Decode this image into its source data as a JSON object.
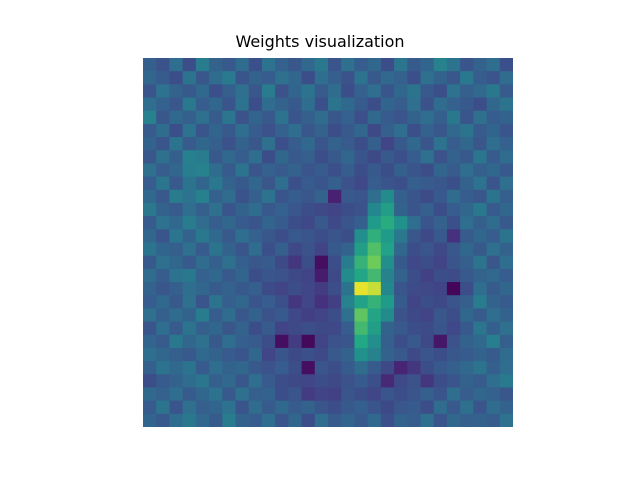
{
  "chart_data": {
    "type": "heatmap",
    "title": "Weights visualization",
    "xlabel": "",
    "ylabel": "",
    "axes_visible": false,
    "grid": false,
    "colormap": "viridis",
    "value_range": [
      0,
      1
    ],
    "rows": 28,
    "cols": 28,
    "values": [
      [
        0.38,
        0.32,
        0.45,
        0.3,
        0.52,
        0.4,
        0.35,
        0.44,
        0.31,
        0.47,
        0.39,
        0.34,
        0.43,
        0.5,
        0.33,
        0.46,
        0.37,
        0.42,
        0.3,
        0.49,
        0.36,
        0.41,
        0.55,
        0.48,
        0.33,
        0.4,
        0.45,
        0.31
      ],
      [
        0.42,
        0.36,
        0.3,
        0.48,
        0.34,
        0.44,
        0.51,
        0.33,
        0.4,
        0.37,
        0.46,
        0.42,
        0.3,
        0.45,
        0.38,
        0.32,
        0.47,
        0.35,
        0.43,
        0.39,
        0.31,
        0.46,
        0.4,
        0.34,
        0.5,
        0.37,
        0.33,
        0.44
      ],
      [
        0.33,
        0.47,
        0.4,
        0.35,
        0.43,
        0.31,
        0.38,
        0.46,
        0.34,
        0.52,
        0.32,
        0.41,
        0.48,
        0.36,
        0.44,
        0.3,
        0.39,
        0.45,
        0.33,
        0.42,
        0.48,
        0.35,
        0.31,
        0.47,
        0.38,
        0.43,
        0.5,
        0.36
      ],
      [
        0.45,
        0.39,
        0.34,
        0.5,
        0.37,
        0.42,
        0.33,
        0.47,
        0.3,
        0.44,
        0.4,
        0.35,
        0.45,
        0.31,
        0.48,
        0.43,
        0.36,
        0.3,
        0.41,
        0.37,
        0.46,
        0.32,
        0.44,
        0.39,
        0.35,
        0.3,
        0.42,
        0.48
      ],
      [
        0.55,
        0.34,
        0.43,
        0.38,
        0.46,
        0.36,
        0.49,
        0.32,
        0.41,
        0.35,
        0.47,
        0.33,
        0.38,
        0.44,
        0.34,
        0.39,
        0.31,
        0.43,
        0.36,
        0.33,
        0.4,
        0.45,
        0.38,
        0.5,
        0.33,
        0.46,
        0.37,
        0.4
      ],
      [
        0.36,
        0.44,
        0.31,
        0.47,
        0.33,
        0.41,
        0.35,
        0.45,
        0.37,
        0.32,
        0.39,
        0.45,
        0.34,
        0.4,
        0.3,
        0.35,
        0.42,
        0.28,
        0.38,
        0.45,
        0.31,
        0.39,
        0.34,
        0.43,
        0.48,
        0.36,
        0.41,
        0.33
      ],
      [
        0.4,
        0.33,
        0.48,
        0.36,
        0.42,
        0.38,
        0.32,
        0.4,
        0.34,
        0.46,
        0.31,
        0.37,
        0.43,
        0.33,
        0.4,
        0.36,
        0.3,
        0.38,
        0.25,
        0.35,
        0.43,
        0.33,
        0.47,
        0.37,
        0.42,
        0.34,
        0.45,
        0.39
      ],
      [
        0.34,
        0.46,
        0.38,
        0.54,
        0.52,
        0.35,
        0.43,
        0.37,
        0.45,
        0.3,
        0.42,
        0.35,
        0.38,
        0.3,
        0.35,
        0.42,
        0.33,
        0.28,
        0.35,
        0.31,
        0.37,
        0.46,
        0.32,
        0.4,
        0.35,
        0.49,
        0.36,
        0.44
      ],
      [
        0.46,
        0.37,
        0.42,
        0.53,
        0.55,
        0.44,
        0.36,
        0.48,
        0.33,
        0.39,
        0.36,
        0.4,
        0.33,
        0.36,
        0.31,
        0.37,
        0.3,
        0.35,
        0.3,
        0.38,
        0.33,
        0.3,
        0.41,
        0.36,
        0.45,
        0.38,
        0.42,
        0.35
      ],
      [
        0.37,
        0.49,
        0.35,
        0.48,
        0.41,
        0.5,
        0.4,
        0.35,
        0.42,
        0.34,
        0.45,
        0.31,
        0.36,
        0.33,
        0.38,
        0.32,
        0.27,
        0.37,
        0.33,
        0.31,
        0.38,
        0.36,
        0.34,
        0.31,
        0.4,
        0.47,
        0.33,
        0.46
      ],
      [
        0.43,
        0.35,
        0.52,
        0.47,
        0.54,
        0.39,
        0.44,
        0.32,
        0.38,
        0.47,
        0.33,
        0.37,
        0.34,
        0.4,
        0.12,
        0.35,
        0.33,
        0.45,
        0.6,
        0.38,
        0.33,
        0.29,
        0.35,
        0.44,
        0.37,
        0.34,
        0.48,
        0.38
      ],
      [
        0.5,
        0.4,
        0.36,
        0.45,
        0.38,
        0.46,
        0.33,
        0.4,
        0.44,
        0.35,
        0.39,
        0.34,
        0.3,
        0.28,
        0.25,
        0.3,
        0.32,
        0.58,
        0.7,
        0.4,
        0.33,
        0.38,
        0.3,
        0.37,
        0.42,
        0.5,
        0.36,
        0.42
      ],
      [
        0.36,
        0.47,
        0.43,
        0.52,
        0.44,
        0.37,
        0.42,
        0.36,
        0.33,
        0.41,
        0.36,
        0.3,
        0.27,
        0.35,
        0.28,
        0.33,
        0.38,
        0.68,
        0.76,
        0.63,
        0.45,
        0.33,
        0.39,
        0.31,
        0.45,
        0.38,
        0.44,
        0.35
      ],
      [
        0.42,
        0.33,
        0.49,
        0.4,
        0.5,
        0.43,
        0.35,
        0.45,
        0.39,
        0.34,
        0.3,
        0.35,
        0.33,
        0.3,
        0.33,
        0.3,
        0.62,
        0.77,
        0.68,
        0.5,
        0.34,
        0.28,
        0.35,
        0.18,
        0.36,
        0.42,
        0.37,
        0.48
      ],
      [
        0.48,
        0.41,
        0.38,
        0.46,
        0.36,
        0.48,
        0.4,
        0.33,
        0.44,
        0.31,
        0.38,
        0.27,
        0.32,
        0.25,
        0.35,
        0.4,
        0.7,
        0.82,
        0.72,
        0.42,
        0.3,
        0.33,
        0.28,
        0.34,
        0.42,
        0.35,
        0.46,
        0.4
      ],
      [
        0.35,
        0.46,
        0.42,
        0.35,
        0.44,
        0.38,
        0.46,
        0.38,
        0.34,
        0.36,
        0.28,
        0.2,
        0.3,
        0.05,
        0.3,
        0.52,
        0.78,
        0.86,
        0.62,
        0.35,
        0.27,
        0.3,
        0.25,
        0.33,
        0.38,
        0.48,
        0.34,
        0.45
      ],
      [
        0.44,
        0.37,
        0.47,
        0.5,
        0.39,
        0.43,
        0.35,
        0.41,
        0.3,
        0.33,
        0.32,
        0.28,
        0.25,
        0.1,
        0.28,
        0.6,
        0.74,
        0.8,
        0.55,
        0.4,
        0.3,
        0.24,
        0.3,
        0.29,
        0.35,
        0.4,
        0.43,
        0.37
      ],
      [
        0.4,
        0.34,
        0.38,
        0.45,
        0.42,
        0.36,
        0.4,
        0.35,
        0.38,
        0.29,
        0.25,
        0.3,
        0.26,
        0.22,
        0.3,
        0.48,
        0.98,
        0.95,
        0.58,
        0.33,
        0.29,
        0.27,
        0.25,
        0.02,
        0.3,
        0.45,
        0.36,
        0.42
      ],
      [
        0.37,
        0.43,
        0.35,
        0.46,
        0.33,
        0.48,
        0.38,
        0.42,
        0.33,
        0.37,
        0.31,
        0.2,
        0.26,
        0.18,
        0.23,
        0.55,
        0.72,
        0.78,
        0.68,
        0.36,
        0.25,
        0.3,
        0.28,
        0.33,
        0.38,
        0.52,
        0.4,
        0.36
      ],
      [
        0.46,
        0.38,
        0.44,
        0.4,
        0.52,
        0.37,
        0.44,
        0.34,
        0.4,
        0.32,
        0.35,
        0.27,
        0.23,
        0.25,
        0.3,
        0.46,
        0.84,
        0.73,
        0.6,
        0.32,
        0.28,
        0.25,
        0.34,
        0.3,
        0.42,
        0.36,
        0.45,
        0.4
      ],
      [
        0.33,
        0.45,
        0.36,
        0.48,
        0.38,
        0.42,
        0.34,
        0.4,
        0.3,
        0.36,
        0.25,
        0.28,
        0.3,
        0.28,
        0.27,
        0.37,
        0.8,
        0.7,
        0.4,
        0.35,
        0.3,
        0.29,
        0.33,
        0.27,
        0.35,
        0.49,
        0.38,
        0.46
      ],
      [
        0.41,
        0.36,
        0.5,
        0.42,
        0.46,
        0.35,
        0.45,
        0.38,
        0.36,
        0.3,
        0.05,
        0.22,
        0.03,
        0.25,
        0.32,
        0.33,
        0.75,
        0.62,
        0.38,
        0.3,
        0.35,
        0.28,
        0.08,
        0.32,
        0.4,
        0.43,
        0.53,
        0.38
      ],
      [
        0.45,
        0.42,
        0.38,
        0.35,
        0.43,
        0.4,
        0.36,
        0.33,
        0.42,
        0.26,
        0.33,
        0.28,
        0.31,
        0.28,
        0.35,
        0.4,
        0.63,
        0.55,
        0.4,
        0.35,
        0.28,
        0.33,
        0.3,
        0.34,
        0.36,
        0.4,
        0.36,
        0.44
      ],
      [
        0.38,
        0.47,
        0.43,
        0.48,
        0.36,
        0.45,
        0.4,
        0.42,
        0.35,
        0.32,
        0.37,
        0.3,
        0.05,
        0.33,
        0.3,
        0.36,
        0.44,
        0.36,
        0.28,
        0.13,
        0.2,
        0.3,
        0.35,
        0.38,
        0.43,
        0.48,
        0.38,
        0.45
      ],
      [
        0.3,
        0.36,
        0.4,
        0.44,
        0.49,
        0.38,
        0.43,
        0.34,
        0.45,
        0.36,
        0.3,
        0.28,
        0.26,
        0.3,
        0.28,
        0.32,
        0.36,
        0.31,
        0.15,
        0.28,
        0.32,
        0.2,
        0.3,
        0.33,
        0.4,
        0.36,
        0.45,
        0.51
      ],
      [
        0.43,
        0.39,
        0.45,
        0.36,
        0.42,
        0.47,
        0.35,
        0.46,
        0.38,
        0.4,
        0.3,
        0.33,
        0.22,
        0.25,
        0.24,
        0.33,
        0.3,
        0.26,
        0.33,
        0.3,
        0.33,
        0.38,
        0.33,
        0.45,
        0.37,
        0.42,
        0.39,
        0.34
      ],
      [
        0.36,
        0.48,
        0.33,
        0.46,
        0.38,
        0.41,
        0.47,
        0.33,
        0.44,
        0.36,
        0.43,
        0.36,
        0.4,
        0.33,
        0.3,
        0.35,
        0.38,
        0.33,
        0.28,
        0.34,
        0.36,
        0.3,
        0.44,
        0.35,
        0.46,
        0.33,
        0.44,
        0.4
      ],
      [
        0.41,
        0.35,
        0.44,
        0.5,
        0.43,
        0.36,
        0.52,
        0.4,
        0.37,
        0.45,
        0.33,
        0.42,
        0.3,
        0.45,
        0.36,
        0.41,
        0.35,
        0.43,
        0.31,
        0.4,
        0.37,
        0.46,
        0.33,
        0.42,
        0.38,
        0.4,
        0.37,
        0.47
      ]
    ]
  }
}
